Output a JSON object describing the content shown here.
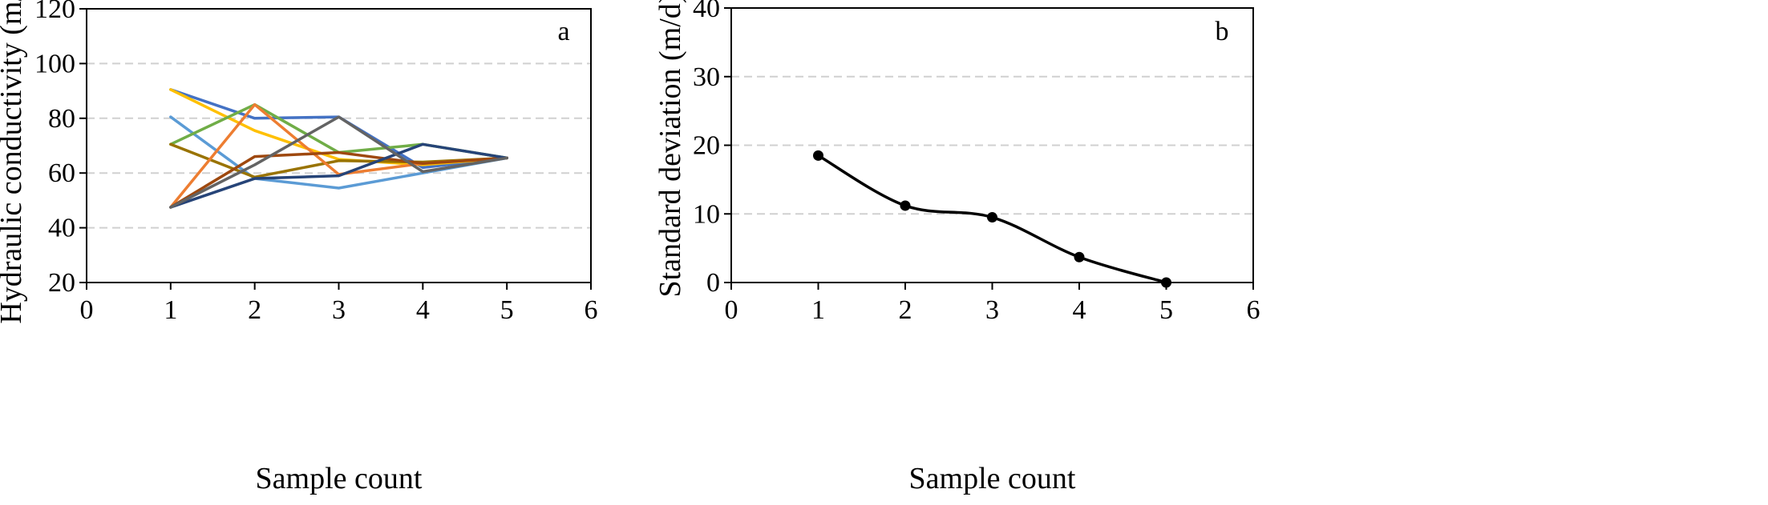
{
  "chart_data": [
    {
      "type": "line",
      "panel_label": "a",
      "xlabel": "Sample count",
      "ylabel": "Hydraulic conductivity (m/d)",
      "xlim": [
        0,
        6
      ],
      "ylim": [
        20,
        120
      ],
      "xticks": [
        0,
        1,
        2,
        3,
        4,
        5,
        6
      ],
      "yticks": [
        20,
        40,
        60,
        80,
        100,
        120
      ],
      "grid": "horizontal dashed",
      "legend": "none",
      "series": [
        {
          "color": "#4472C4",
          "x": [
            1,
            2,
            3,
            4,
            5
          ],
          "y": [
            90.5,
            80,
            80.5,
            62,
            65.5
          ]
        },
        {
          "color": "#FFC000",
          "x": [
            1,
            2,
            3,
            4,
            5
          ],
          "y": [
            90.5,
            75.5,
            65,
            63,
            65.5
          ]
        },
        {
          "color": "#5B9BD5",
          "x": [
            1,
            2,
            3,
            4,
            5
          ],
          "y": [
            80.5,
            58,
            54.5,
            60,
            65.5
          ]
        },
        {
          "color": "#70AD47",
          "x": [
            1,
            2,
            3,
            4,
            5
          ],
          "y": [
            70.5,
            85,
            67.5,
            70.5,
            65.5
          ]
        },
        {
          "color": "#997300",
          "x": [
            1,
            2,
            3,
            4,
            5
          ],
          "y": [
            70.5,
            58.5,
            64.5,
            64,
            65.5
          ]
        },
        {
          "color": "#ED7D31",
          "x": [
            1,
            2,
            3,
            4,
            5
          ],
          "y": [
            47.5,
            85,
            59.5,
            63.5,
            65.5
          ]
        },
        {
          "color": "#9E480E",
          "x": [
            1,
            2,
            3,
            4,
            5
          ],
          "y": [
            47.5,
            66,
            67.5,
            63.5,
            65.5
          ]
        },
        {
          "color": "#264478",
          "x": [
            1,
            2,
            3,
            4,
            5
          ],
          "y": [
            47.5,
            58,
            59,
            70.5,
            65.5
          ]
        },
        {
          "color": "#636363",
          "x": [
            1,
            2,
            3,
            4,
            5
          ],
          "y": [
            47.5,
            63,
            80.5,
            60.5,
            65.5
          ]
        }
      ]
    },
    {
      "type": "line",
      "panel_label": "b",
      "xlabel": "Sample count",
      "ylabel": "Standard deviation (m/d)",
      "xlim": [
        0,
        6
      ],
      "ylim": [
        0,
        40
      ],
      "xticks": [
        0,
        1,
        2,
        3,
        4,
        5,
        6
      ],
      "yticks": [
        0,
        10,
        20,
        30,
        40
      ],
      "grid": "horizontal dashed",
      "legend": "none",
      "smooth": true,
      "markers": true,
      "series": [
        {
          "color": "#000000",
          "x": [
            1,
            2,
            3,
            4,
            5
          ],
          "y": [
            18.5,
            11.2,
            9.5,
            3.7,
            0
          ]
        }
      ]
    }
  ]
}
